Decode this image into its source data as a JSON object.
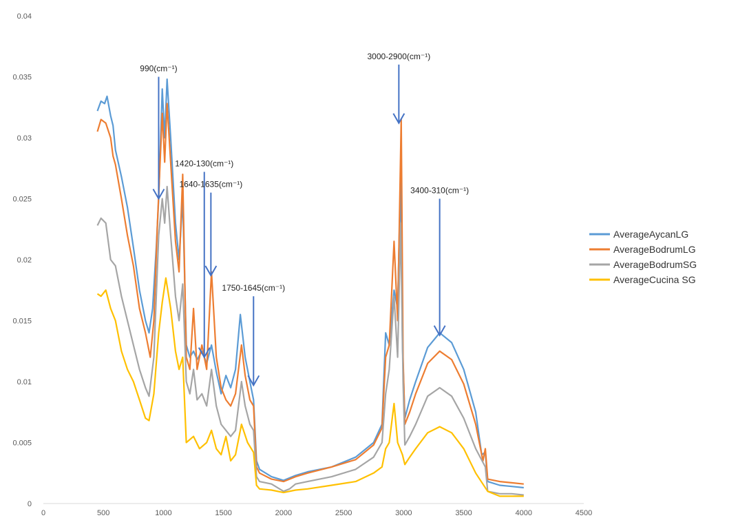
{
  "chart_data": {
    "type": "line",
    "title": "",
    "xlabel": "",
    "ylabel": "",
    "xlim": [
      0,
      4500
    ],
    "ylim": [
      0,
      0.04
    ],
    "x_ticks": [
      "0",
      "500",
      "1000",
      "1500",
      "2000",
      "2500",
      "3000",
      "3500",
      "4000",
      "4500"
    ],
    "y_ticks": [
      "0",
      "0.005",
      "0.01",
      "0.015",
      "0.02",
      "0.025",
      "0.03",
      "0.035",
      "0.04"
    ],
    "grid": false,
    "legend_position": "right",
    "series": [
      {
        "name": "AverageAycanLG",
        "color": "#5b9bd5",
        "points": [
          [
            450,
            0.0322
          ],
          [
            480,
            0.033
          ],
          [
            510,
            0.0328
          ],
          [
            530,
            0.0334
          ],
          [
            560,
            0.0318
          ],
          [
            580,
            0.031
          ],
          [
            600,
            0.029
          ],
          [
            650,
            0.0268
          ],
          [
            700,
            0.0243
          ],
          [
            750,
            0.021
          ],
          [
            800,
            0.0175
          ],
          [
            850,
            0.015
          ],
          [
            880,
            0.014
          ],
          [
            910,
            0.016
          ],
          [
            940,
            0.021
          ],
          [
            960,
            0.025
          ],
          [
            990,
            0.034
          ],
          [
            1010,
            0.03
          ],
          [
            1030,
            0.0348
          ],
          [
            1060,
            0.03
          ],
          [
            1100,
            0.023
          ],
          [
            1130,
            0.02
          ],
          [
            1160,
            0.025
          ],
          [
            1190,
            0.013
          ],
          [
            1220,
            0.012
          ],
          [
            1250,
            0.0125
          ],
          [
            1280,
            0.0118
          ],
          [
            1320,
            0.0125
          ],
          [
            1360,
            0.0115
          ],
          [
            1400,
            0.013
          ],
          [
            1440,
            0.0108
          ],
          [
            1480,
            0.009
          ],
          [
            1520,
            0.0105
          ],
          [
            1560,
            0.0095
          ],
          [
            1600,
            0.011
          ],
          [
            1640,
            0.0155
          ],
          [
            1680,
            0.012
          ],
          [
            1720,
            0.01
          ],
          [
            1750,
            0.0085
          ],
          [
            1775,
            0.0035
          ],
          [
            1800,
            0.0028
          ],
          [
            1900,
            0.0022
          ],
          [
            2000,
            0.0019
          ],
          [
            2100,
            0.0023
          ],
          [
            2200,
            0.0026
          ],
          [
            2400,
            0.003
          ],
          [
            2600,
            0.0038
          ],
          [
            2750,
            0.005
          ],
          [
            2820,
            0.0065
          ],
          [
            2850,
            0.014
          ],
          [
            2880,
            0.013
          ],
          [
            2920,
            0.0175
          ],
          [
            2950,
            0.016
          ],
          [
            2975,
            0.027
          ],
          [
            2990,
            0.013
          ],
          [
            3010,
            0.007
          ],
          [
            3050,
            0.0085
          ],
          [
            3100,
            0.01
          ],
          [
            3200,
            0.0128
          ],
          [
            3300,
            0.014
          ],
          [
            3400,
            0.0132
          ],
          [
            3500,
            0.011
          ],
          [
            3600,
            0.0075
          ],
          [
            3650,
            0.004
          ],
          [
            3680,
            0.0042
          ],
          [
            3700,
            0.0018
          ],
          [
            3800,
            0.0015
          ],
          [
            3900,
            0.0014
          ],
          [
            4000,
            0.0013
          ]
        ]
      },
      {
        "name": "AverageBodrumLG",
        "color": "#ed7d31",
        "points": [
          [
            450,
            0.0305
          ],
          [
            480,
            0.0315
          ],
          [
            520,
            0.0312
          ],
          [
            560,
            0.03
          ],
          [
            580,
            0.0285
          ],
          [
            600,
            0.0278
          ],
          [
            650,
            0.025
          ],
          [
            700,
            0.022
          ],
          [
            750,
            0.0195
          ],
          [
            800,
            0.016
          ],
          [
            850,
            0.014
          ],
          [
            890,
            0.012
          ],
          [
            920,
            0.015
          ],
          [
            950,
            0.023
          ],
          [
            990,
            0.032
          ],
          [
            1010,
            0.028
          ],
          [
            1030,
            0.0328
          ],
          [
            1060,
            0.028
          ],
          [
            1100,
            0.0215
          ],
          [
            1130,
            0.019
          ],
          [
            1160,
            0.027
          ],
          [
            1190,
            0.012
          ],
          [
            1220,
            0.011
          ],
          [
            1250,
            0.016
          ],
          [
            1280,
            0.011
          ],
          [
            1320,
            0.013
          ],
          [
            1360,
            0.011
          ],
          [
            1400,
            0.019
          ],
          [
            1440,
            0.012
          ],
          [
            1480,
            0.0095
          ],
          [
            1520,
            0.0085
          ],
          [
            1560,
            0.008
          ],
          [
            1600,
            0.009
          ],
          [
            1650,
            0.013
          ],
          [
            1680,
            0.0105
          ],
          [
            1720,
            0.0085
          ],
          [
            1750,
            0.008
          ],
          [
            1775,
            0.003
          ],
          [
            1800,
            0.0025
          ],
          [
            1900,
            0.002
          ],
          [
            2000,
            0.0018
          ],
          [
            2100,
            0.0022
          ],
          [
            2200,
            0.0025
          ],
          [
            2400,
            0.003
          ],
          [
            2600,
            0.0036
          ],
          [
            2750,
            0.0048
          ],
          [
            2820,
            0.0062
          ],
          [
            2850,
            0.012
          ],
          [
            2880,
            0.013
          ],
          [
            2920,
            0.0215
          ],
          [
            2950,
            0.015
          ],
          [
            2980,
            0.0315
          ],
          [
            2995,
            0.012
          ],
          [
            3010,
            0.0065
          ],
          [
            3050,
            0.0075
          ],
          [
            3100,
            0.009
          ],
          [
            3200,
            0.0115
          ],
          [
            3300,
            0.0125
          ],
          [
            3400,
            0.0118
          ],
          [
            3500,
            0.0098
          ],
          [
            3600,
            0.0065
          ],
          [
            3660,
            0.0035
          ],
          [
            3680,
            0.0045
          ],
          [
            3700,
            0.002
          ],
          [
            3800,
            0.0018
          ],
          [
            3900,
            0.0017
          ],
          [
            4000,
            0.0016
          ]
        ]
      },
      {
        "name": "AverageBodrumSG",
        "color": "#a5a5a5",
        "points": [
          [
            450,
            0.0228
          ],
          [
            480,
            0.0234
          ],
          [
            520,
            0.023
          ],
          [
            560,
            0.02
          ],
          [
            600,
            0.0195
          ],
          [
            650,
            0.017
          ],
          [
            700,
            0.015
          ],
          [
            750,
            0.013
          ],
          [
            800,
            0.011
          ],
          [
            850,
            0.0095
          ],
          [
            880,
            0.0088
          ],
          [
            920,
            0.012
          ],
          [
            960,
            0.022
          ],
          [
            990,
            0.025
          ],
          [
            1010,
            0.023
          ],
          [
            1030,
            0.026
          ],
          [
            1060,
            0.022
          ],
          [
            1100,
            0.017
          ],
          [
            1130,
            0.015
          ],
          [
            1160,
            0.018
          ],
          [
            1190,
            0.01
          ],
          [
            1220,
            0.009
          ],
          [
            1250,
            0.011
          ],
          [
            1280,
            0.0085
          ],
          [
            1320,
            0.009
          ],
          [
            1360,
            0.008
          ],
          [
            1400,
            0.011
          ],
          [
            1440,
            0.008
          ],
          [
            1480,
            0.0065
          ],
          [
            1520,
            0.006
          ],
          [
            1560,
            0.0055
          ],
          [
            1600,
            0.006
          ],
          [
            1650,
            0.01
          ],
          [
            1680,
            0.008
          ],
          [
            1720,
            0.0065
          ],
          [
            1750,
            0.006
          ],
          [
            1775,
            0.0022
          ],
          [
            1800,
            0.0018
          ],
          [
            1900,
            0.0016
          ],
          [
            2000,
            0.001
          ],
          [
            2050,
            0.0012
          ],
          [
            2100,
            0.0016
          ],
          [
            2200,
            0.0018
          ],
          [
            2400,
            0.0022
          ],
          [
            2600,
            0.0028
          ],
          [
            2750,
            0.0038
          ],
          [
            2820,
            0.005
          ],
          [
            2850,
            0.009
          ],
          [
            2880,
            0.011
          ],
          [
            2920,
            0.017
          ],
          [
            2950,
            0.012
          ],
          [
            2975,
            0.023
          ],
          [
            2995,
            0.01
          ],
          [
            3010,
            0.0048
          ],
          [
            3050,
            0.0055
          ],
          [
            3100,
            0.0065
          ],
          [
            3200,
            0.0088
          ],
          [
            3300,
            0.0095
          ],
          [
            3400,
            0.0088
          ],
          [
            3500,
            0.007
          ],
          [
            3600,
            0.0045
          ],
          [
            3680,
            0.003
          ],
          [
            3700,
            0.001
          ],
          [
            3800,
            0.0008
          ],
          [
            3900,
            0.0008
          ],
          [
            4000,
            0.0007
          ]
        ]
      },
      {
        "name": "AverageCucina SG",
        "color": "#ffc000",
        "points": [
          [
            450,
            0.0172
          ],
          [
            480,
            0.017
          ],
          [
            520,
            0.0175
          ],
          [
            560,
            0.016
          ],
          [
            600,
            0.015
          ],
          [
            650,
            0.0125
          ],
          [
            700,
            0.011
          ],
          [
            750,
            0.01
          ],
          [
            800,
            0.0085
          ],
          [
            850,
            0.007
          ],
          [
            880,
            0.0068
          ],
          [
            920,
            0.009
          ],
          [
            960,
            0.014
          ],
          [
            990,
            0.0165
          ],
          [
            1020,
            0.0185
          ],
          [
            1060,
            0.016
          ],
          [
            1100,
            0.0125
          ],
          [
            1130,
            0.011
          ],
          [
            1160,
            0.012
          ],
          [
            1190,
            0.005
          ],
          [
            1250,
            0.0055
          ],
          [
            1300,
            0.0045
          ],
          [
            1360,
            0.005
          ],
          [
            1400,
            0.006
          ],
          [
            1440,
            0.0045
          ],
          [
            1480,
            0.004
          ],
          [
            1520,
            0.0055
          ],
          [
            1560,
            0.0035
          ],
          [
            1600,
            0.004
          ],
          [
            1650,
            0.0065
          ],
          [
            1700,
            0.005
          ],
          [
            1750,
            0.0042
          ],
          [
            1775,
            0.0015
          ],
          [
            1800,
            0.0012
          ],
          [
            1900,
            0.0011
          ],
          [
            2000,
            0.0009
          ],
          [
            2100,
            0.0011
          ],
          [
            2200,
            0.0012
          ],
          [
            2400,
            0.0015
          ],
          [
            2600,
            0.0018
          ],
          [
            2750,
            0.0025
          ],
          [
            2820,
            0.003
          ],
          [
            2850,
            0.0045
          ],
          [
            2880,
            0.005
          ],
          [
            2920,
            0.0082
          ],
          [
            2950,
            0.005
          ],
          [
            2990,
            0.004
          ],
          [
            3010,
            0.0032
          ],
          [
            3050,
            0.0038
          ],
          [
            3100,
            0.0045
          ],
          [
            3200,
            0.0058
          ],
          [
            3300,
            0.0063
          ],
          [
            3400,
            0.0058
          ],
          [
            3500,
            0.0045
          ],
          [
            3600,
            0.0025
          ],
          [
            3700,
            0.001
          ],
          [
            3800,
            0.0006
          ],
          [
            3900,
            0.0006
          ],
          [
            4000,
            0.0006
          ]
        ]
      }
    ],
    "annotations": [
      {
        "label": "990(cm⁻¹)",
        "arrow_x": 960,
        "arrow_y_top": 0.035,
        "arrow_y_bottom": 0.025
      },
      {
        "label": "1420-130(cm⁻¹)",
        "arrow_x": 1340,
        "arrow_y_top": 0.0272,
        "arrow_y_bottom": 0.012
      },
      {
        "label": "1640-1635(cm⁻¹)",
        "arrow_x": 1395,
        "arrow_y_top": 0.0255,
        "arrow_y_bottom": 0.0187
      },
      {
        "label": "1750-1645(cm⁻¹)",
        "arrow_x": 1750,
        "arrow_y_top": 0.017,
        "arrow_y_bottom": 0.0097
      },
      {
        "label": "3000-2900(cm⁻¹)",
        "arrow_x": 2960,
        "arrow_y_top": 0.036,
        "arrow_y_bottom": 0.0312
      },
      {
        "label": "3400-310(cm⁻¹)",
        "arrow_x": 3300,
        "arrow_y_top": 0.025,
        "arrow_y_bottom": 0.0138
      }
    ]
  }
}
